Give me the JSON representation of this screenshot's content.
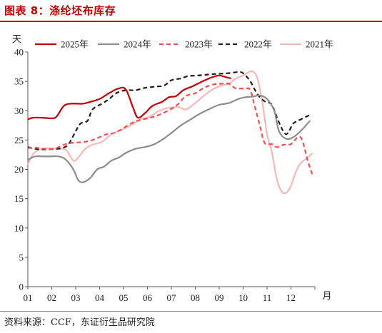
{
  "header": {
    "title": "图表 8：涤纶坯布库存"
  },
  "footer": {
    "source": "资料来源：CCF，东证衍生品研究院"
  },
  "chart_data": {
    "type": "line",
    "ylabel": "天",
    "xlabel": "月",
    "ylim": [
      0,
      40
    ],
    "yticks": [
      0,
      5,
      10,
      15,
      20,
      25,
      30,
      35,
      40
    ],
    "xticks": [
      "01",
      "02",
      "03",
      "04",
      "05",
      "06",
      "07",
      "08",
      "09",
      "10",
      "11",
      "12"
    ],
    "xlim": [
      1,
      13
    ],
    "legend_position": "top",
    "grid": false,
    "series": [
      {
        "name": "2025年",
        "color": "#c00000",
        "dash": "solid",
        "width": 2.2,
        "points": [
          [
            1,
            28.5
          ],
          [
            1.2,
            28.8
          ],
          [
            1.6,
            28.8
          ],
          [
            2.0,
            28.7
          ],
          [
            2.2,
            29.0
          ],
          [
            2.5,
            30.8
          ],
          [
            2.8,
            31.2
          ],
          [
            3.3,
            31.2
          ],
          [
            3.6,
            31.5
          ],
          [
            4.0,
            32.0
          ],
          [
            4.4,
            33.0
          ],
          [
            4.8,
            33.8
          ],
          [
            5.1,
            33.6
          ],
          [
            5.4,
            30.5
          ],
          [
            5.6,
            28.8
          ],
          [
            5.9,
            29.6
          ],
          [
            6.2,
            30.8
          ],
          [
            6.6,
            31.5
          ],
          [
            6.9,
            32.3
          ],
          [
            7.2,
            32.5
          ],
          [
            7.5,
            33.5
          ],
          [
            7.9,
            34.2
          ],
          [
            8.3,
            35.0
          ],
          [
            8.7,
            35.7
          ],
          [
            9.0,
            36.0
          ],
          [
            9.3,
            35.7
          ],
          [
            9.5,
            35.5
          ]
        ]
      },
      {
        "name": "2024年",
        "color": "#8c8c8c",
        "dash": "solid",
        "width": 2.2,
        "points": [
          [
            1,
            21.6
          ],
          [
            1.3,
            22.2
          ],
          [
            1.8,
            22.2
          ],
          [
            2.3,
            22.2
          ],
          [
            2.6,
            21.6
          ],
          [
            2.9,
            20.0
          ],
          [
            3.1,
            18.2
          ],
          [
            3.3,
            17.8
          ],
          [
            3.6,
            18.5
          ],
          [
            3.9,
            20.0
          ],
          [
            4.2,
            20.5
          ],
          [
            4.5,
            21.5
          ],
          [
            4.8,
            22.0
          ],
          [
            5.1,
            22.8
          ],
          [
            5.5,
            23.5
          ],
          [
            5.9,
            23.8
          ],
          [
            6.3,
            24.3
          ],
          [
            6.7,
            25.3
          ],
          [
            7.0,
            26.2
          ],
          [
            7.4,
            27.5
          ],
          [
            7.8,
            28.5
          ],
          [
            8.2,
            29.5
          ],
          [
            8.6,
            30.3
          ],
          [
            9.0,
            31.0
          ],
          [
            9.4,
            31.3
          ],
          [
            9.8,
            32.0
          ],
          [
            10.1,
            32.3
          ],
          [
            10.4,
            32.4
          ],
          [
            10.7,
            32.6
          ],
          [
            11.0,
            32.0
          ],
          [
            11.3,
            30.0
          ],
          [
            11.5,
            26.5
          ],
          [
            11.8,
            25.2
          ],
          [
            12.1,
            25.5
          ],
          [
            12.4,
            26.5
          ],
          [
            12.8,
            28.3
          ]
        ]
      },
      {
        "name": "2023年",
        "color": "#f05050",
        "dash": "6,4",
        "width": 2.2,
        "points": [
          [
            1,
            23.6
          ],
          [
            1.3,
            23.7
          ],
          [
            1.7,
            23.5
          ],
          [
            2.1,
            23.5
          ],
          [
            2.5,
            24.2
          ],
          [
            2.8,
            24.5
          ],
          [
            3.1,
            24.6
          ],
          [
            3.4,
            24.7
          ],
          [
            3.7,
            25.0
          ],
          [
            4.0,
            25.5
          ],
          [
            4.3,
            26.0
          ],
          [
            4.6,
            26.2
          ],
          [
            4.9,
            26.8
          ],
          [
            5.3,
            27.8
          ],
          [
            5.6,
            28.3
          ],
          [
            5.9,
            28.6
          ],
          [
            6.3,
            29.0
          ],
          [
            6.6,
            29.5
          ],
          [
            7.0,
            30.3
          ],
          [
            7.3,
            31.2
          ],
          [
            7.6,
            32.5
          ],
          [
            8.0,
            33.0
          ],
          [
            8.4,
            34.0
          ],
          [
            8.8,
            34.5
          ],
          [
            9.1,
            34.6
          ],
          [
            9.4,
            34.6
          ],
          [
            9.7,
            33.8
          ],
          [
            10.1,
            33.8
          ],
          [
            10.3,
            33.5
          ],
          [
            10.5,
            30.5
          ],
          [
            10.7,
            27.5
          ],
          [
            10.9,
            24.5
          ],
          [
            11.2,
            24.3
          ],
          [
            11.4,
            23.8
          ],
          [
            11.7,
            24.2
          ],
          [
            12.0,
            24.3
          ],
          [
            12.4,
            25.5
          ],
          [
            12.7,
            21.5
          ],
          [
            12.9,
            19.0
          ]
        ]
      },
      {
        "name": "2022年",
        "color": "#1f1f1f",
        "dash": "6,4",
        "width": 2.2,
        "points": [
          [
            1,
            23.8
          ],
          [
            1.3,
            23.5
          ],
          [
            1.8,
            23.4
          ],
          [
            2.4,
            23.6
          ],
          [
            2.7,
            24.3
          ],
          [
            3.0,
            26.5
          ],
          [
            3.2,
            27.8
          ],
          [
            3.5,
            28.3
          ],
          [
            3.7,
            30.2
          ],
          [
            4.1,
            31.2
          ],
          [
            4.4,
            32.0
          ],
          [
            4.7,
            33.0
          ],
          [
            5.1,
            33.5
          ],
          [
            5.5,
            33.5
          ],
          [
            5.9,
            33.9
          ],
          [
            6.3,
            34.1
          ],
          [
            6.7,
            34.3
          ],
          [
            7.0,
            35.2
          ],
          [
            7.4,
            35.5
          ],
          [
            7.7,
            35.9
          ],
          [
            8.1,
            36.0
          ],
          [
            8.6,
            36.2
          ],
          [
            9.0,
            36.3
          ],
          [
            9.4,
            36.4
          ],
          [
            9.8,
            36.6
          ],
          [
            10.0,
            36.4
          ],
          [
            10.3,
            35.0
          ],
          [
            10.6,
            32.8
          ],
          [
            10.9,
            31.6
          ],
          [
            11.2,
            31.0
          ],
          [
            11.5,
            28.0
          ],
          [
            11.8,
            26.0
          ],
          [
            12.1,
            27.8
          ],
          [
            12.4,
            28.5
          ],
          [
            12.8,
            29.3
          ]
        ]
      },
      {
        "name": "2021年",
        "color": "#f4b8b8",
        "dash": "solid",
        "width": 2.2,
        "points": [
          [
            1,
            20.8
          ],
          [
            1.2,
            22.5
          ],
          [
            1.5,
            23.4
          ],
          [
            1.9,
            23.6
          ],
          [
            2.3,
            23.5
          ],
          [
            2.6,
            23.3
          ],
          [
            2.9,
            21.5
          ],
          [
            3.1,
            22.0
          ],
          [
            3.4,
            23.5
          ],
          [
            3.7,
            24.2
          ],
          [
            4.1,
            24.7
          ],
          [
            4.5,
            26.0
          ],
          [
            4.9,
            26.7
          ],
          [
            5.3,
            27.5
          ],
          [
            5.7,
            28.5
          ],
          [
            6.1,
            29.0
          ],
          [
            6.5,
            30.0
          ],
          [
            6.9,
            30.5
          ],
          [
            7.3,
            30.6
          ],
          [
            7.6,
            30.2
          ],
          [
            7.9,
            31.0
          ],
          [
            8.2,
            32.0
          ],
          [
            8.5,
            33.0
          ],
          [
            8.8,
            33.8
          ],
          [
            9.1,
            34.3
          ],
          [
            9.4,
            34.6
          ],
          [
            9.7,
            35.5
          ],
          [
            10.0,
            36.0
          ],
          [
            10.2,
            36.5
          ],
          [
            10.4,
            36.7
          ],
          [
            10.6,
            35.5
          ],
          [
            10.8,
            31.5
          ],
          [
            11.0,
            26.0
          ],
          [
            11.2,
            23.0
          ],
          [
            11.4,
            18.5
          ],
          [
            11.6,
            16.3
          ],
          [
            11.8,
            16.0
          ],
          [
            12.0,
            17.2
          ],
          [
            12.2,
            19.5
          ],
          [
            12.4,
            21.0
          ],
          [
            12.7,
            22.0
          ],
          [
            12.9,
            22.8
          ]
        ]
      }
    ]
  }
}
